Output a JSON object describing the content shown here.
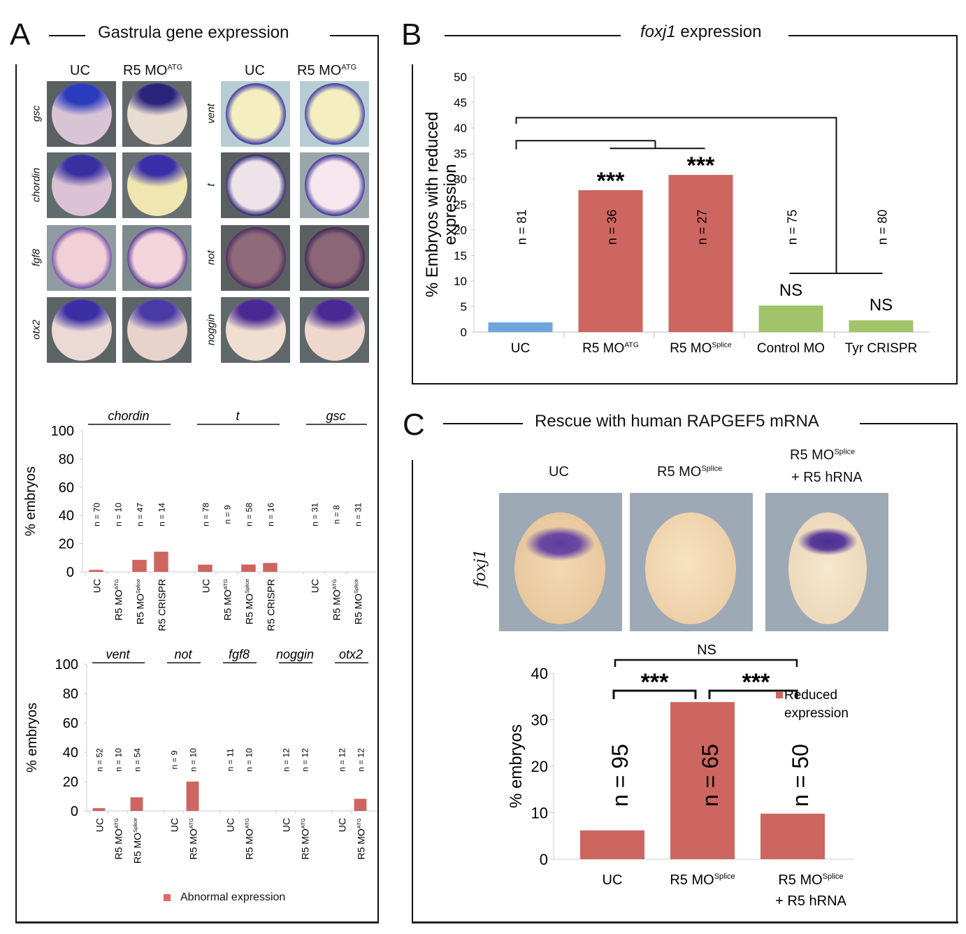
{
  "panels": {
    "A": {
      "letter": "A",
      "title": "Gastrula gene expression",
      "image_columns_left": [
        "UC",
        "R5 MO",
        "ATG"
      ],
      "image_columns_right": [
        "UC",
        "R5 MO",
        "ATG"
      ],
      "rows_left": [
        "gsc",
        "chordin",
        "fgf8",
        "otx2"
      ],
      "rows_right": [
        "vent",
        "t",
        "not",
        "noggin"
      ],
      "legend": "Abnormal expression"
    },
    "B": {
      "letter": "B",
      "title_gene": "foxj1",
      "title_rest": " expression"
    },
    "C": {
      "letter": "C",
      "title": "Rescue with human RAPGEF5 mRNA",
      "image_row_label": "foxj1",
      "image_columns": [
        {
          "line1": "UC",
          "sup": "",
          "line2": ""
        },
        {
          "line1": "R5 MO",
          "sup": "Splice",
          "line2": ""
        },
        {
          "line1": "R5 MO",
          "sup": "Splice",
          "line2": "+ R5 hRNA"
        }
      ],
      "legend": "Reduced expression"
    }
  },
  "colors": {
    "red_bar": "#cd6560",
    "blue_bar": "#6ea5dc",
    "green_bar": "#a3c46a",
    "axis": "#cccccc"
  },
  "chart_data": [
    {
      "id": "A-top",
      "type": "bar",
      "title": "",
      "ylabel": "% embryos",
      "ylim": [
        0,
        100
      ],
      "yticks": [
        0,
        20,
        40,
        60,
        80,
        100
      ],
      "groups": [
        {
          "gene": "chordin",
          "categories": [
            {
              "name": "UC",
              "sup": ""
            },
            {
              "name": "R5 MO",
              "sup": "ATG"
            },
            {
              "name": "R5 MO",
              "sup": "Splice"
            },
            {
              "name": "R5 CRISPR",
              "sup": ""
            }
          ],
          "values": [
            1.4,
            0,
            8.5,
            14.3
          ],
          "n": [
            "n = 70",
            "n = 10",
            "n = 47",
            "n = 14"
          ]
        },
        {
          "gene": "t",
          "categories": [
            {
              "name": "UC",
              "sup": ""
            },
            {
              "name": "R5 MO",
              "sup": "ATG"
            },
            {
              "name": "R5 MO",
              "sup": "Splice"
            },
            {
              "name": "R5 CRISPR",
              "sup": ""
            }
          ],
          "values": [
            5.1,
            0,
            5.2,
            6.3
          ],
          "n": [
            "n = 78",
            "n = 9",
            "n = 58",
            "n = 16"
          ]
        },
        {
          "gene": "gsc",
          "categories": [
            {
              "name": "UC",
              "sup": ""
            },
            {
              "name": "R5 MO",
              "sup": "ATG"
            },
            {
              "name": "R5 MO",
              "sup": "Splice"
            }
          ],
          "values": [
            0,
            0,
            0
          ],
          "n": [
            "n = 31",
            "n = 8",
            "n = 31"
          ]
        }
      ],
      "legend": "Abnormal expression"
    },
    {
      "id": "A-bottom",
      "type": "bar",
      "title": "",
      "ylabel": "% embryos",
      "ylim": [
        0,
        100
      ],
      "yticks": [
        0,
        20,
        40,
        60,
        80,
        100
      ],
      "groups": [
        {
          "gene": "vent",
          "categories": [
            {
              "name": "UC",
              "sup": ""
            },
            {
              "name": "R5 MO",
              "sup": "ATG"
            },
            {
              "name": "R5 MO",
              "sup": "Splice"
            }
          ],
          "values": [
            1.9,
            0,
            9.3
          ],
          "n": [
            "n = 52",
            "n = 10",
            "n = 54"
          ]
        },
        {
          "gene": "not",
          "categories": [
            {
              "name": "UC",
              "sup": ""
            },
            {
              "name": "R5 MO",
              "sup": "ATG"
            }
          ],
          "values": [
            0,
            20
          ],
          "n": [
            "n = 9",
            "n = 10"
          ]
        },
        {
          "gene": "fgf8",
          "categories": [
            {
              "name": "UC",
              "sup": ""
            },
            {
              "name": "R5 MO",
              "sup": "ATG"
            }
          ],
          "values": [
            0,
            0
          ],
          "n": [
            "n = 11",
            "n = 10"
          ]
        },
        {
          "gene": "noggin",
          "categories": [
            {
              "name": "UC",
              "sup": ""
            },
            {
              "name": "R5 MO",
              "sup": "ATG"
            }
          ],
          "values": [
            0,
            0
          ],
          "n": [
            "n = 12",
            "n = 12"
          ]
        },
        {
          "gene": "otx2",
          "categories": [
            {
              "name": "UC",
              "sup": ""
            },
            {
              "name": "R5 MO",
              "sup": "ATG"
            }
          ],
          "values": [
            0,
            8.3
          ],
          "n": [
            "n = 12",
            "n = 12"
          ]
        }
      ],
      "legend": "Abnormal expression"
    },
    {
      "id": "B",
      "type": "bar",
      "title": "foxj1 expression",
      "ylabel": "% Embryos with reduced expression",
      "ylim": [
        0,
        50
      ],
      "yticks": [
        0,
        5,
        10,
        15,
        20,
        25,
        30,
        35,
        40,
        45,
        50
      ],
      "categories": [
        {
          "name": "UC",
          "sup": ""
        },
        {
          "name": "R5 MO",
          "sup": "ATG"
        },
        {
          "name": "R5 MO",
          "sup": "Splice"
        },
        {
          "name": "Control MO",
          "sup": ""
        },
        {
          "name": "Tyr CRISPR",
          "sup": ""
        }
      ],
      "values": [
        1.9,
        27.8,
        30.8,
        5.2,
        2.3
      ],
      "bar_colors": [
        "blue",
        "red",
        "red",
        "green",
        "green"
      ],
      "n": [
        "n = 81",
        "n = 36",
        "n = 27",
        "n = 75",
        "n = 80"
      ],
      "annotations": [
        "",
        "***",
        "***",
        "NS",
        "NS"
      ],
      "significance_brackets": [
        {
          "from": "UC",
          "to": [
            "R5 MO ATG",
            "R5 MO Splice"
          ],
          "label": "***"
        },
        {
          "from": "UC",
          "to": [
            "Control MO",
            "Tyr CRISPR"
          ],
          "label": "NS"
        }
      ]
    },
    {
      "id": "C",
      "type": "bar",
      "title": "Rescue with human RAPGEF5 mRNA",
      "ylabel": "% embryos",
      "ylim": [
        0,
        40
      ],
      "yticks": [
        0,
        10,
        20,
        30,
        40
      ],
      "categories": [
        {
          "name": "UC",
          "sup": "",
          "line2": ""
        },
        {
          "name": "R5 MO",
          "sup": "Splice",
          "line2": ""
        },
        {
          "name": "R5 MO",
          "sup": "Splice",
          "line2": "+ R5 hRNA"
        }
      ],
      "values": [
        6.2,
        33.8,
        9.8
      ],
      "n": [
        "n = 95",
        "n = 65",
        "n = 50"
      ],
      "significance_brackets": [
        {
          "from": "UC",
          "to": "R5 MO Splice",
          "label": "***"
        },
        {
          "from": "R5 MO Splice",
          "to": "R5 MO Splice + R5 hRNA",
          "label": "***"
        },
        {
          "from": "UC",
          "to": "R5 MO Splice + R5 hRNA",
          "label": "NS"
        }
      ],
      "legend": "Reduced expression",
      "legend_position": "right"
    }
  ]
}
